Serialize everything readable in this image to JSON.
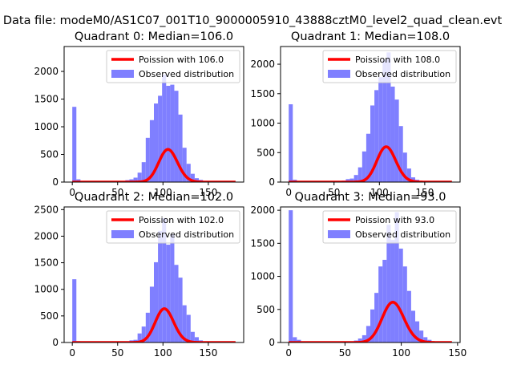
{
  "figure": {
    "suptitle": "Data file: modeM0/AS1C07_001T10_9000005910_43888cztM0_level2_quad_clean.evt"
  },
  "colors": {
    "poisson_line": "#ff0000",
    "histogram_fill": "#7f7fff",
    "axis": "#000000",
    "background": "#ffffff"
  },
  "chart_data": [
    {
      "type": "bar",
      "title": "Quadrant 0: Median=106.0",
      "xlim": [
        -9,
        189
      ],
      "ylim": [
        0,
        2450
      ],
      "xticks": [
        0,
        50,
        100,
        150
      ],
      "xticklabels": [
        "0",
        "50",
        "100",
        "150"
      ],
      "yticks": [
        0,
        500,
        1000,
        1500,
        2000
      ],
      "yticklabels": [
        "0",
        "500",
        "1000",
        "1500",
        "2000"
      ],
      "bin_width": 4.5,
      "bins_x": [
        0,
        4.5,
        9,
        13.5,
        18,
        22.5,
        27,
        31.5,
        36,
        40.5,
        45,
        49.5,
        54,
        58.5,
        63,
        67.5,
        72,
        76.5,
        81,
        85.5,
        90,
        94.5,
        99,
        103.5,
        108,
        112.5,
        117,
        121.5,
        126,
        130.5,
        135,
        139.5,
        144,
        148.5,
        153,
        157.5,
        162,
        166.5,
        171,
        175.5
      ],
      "bins_y": [
        1360,
        50,
        5,
        0,
        0,
        0,
        0,
        0,
        0,
        0,
        0,
        0,
        5,
        35,
        50,
        80,
        170,
        360,
        800,
        1120,
        1420,
        1560,
        1940,
        1740,
        1760,
        1650,
        1220,
        620,
        330,
        150,
        70,
        40,
        15,
        8,
        3,
        0,
        0,
        0,
        0,
        0
      ],
      "poisson_mean": 106.0,
      "poisson_x_max": 180,
      "poisson_scale": 4.5,
      "series": [
        {
          "name": "Poission with 106.0",
          "kind": "line"
        },
        {
          "name": "Observed distribution",
          "kind": "histogram"
        }
      ],
      "legend_loc": "upper right"
    },
    {
      "type": "bar",
      "title": "Quadrant 1: Median=108.0",
      "xlim": [
        -9,
        189
      ],
      "ylim": [
        0,
        2300
      ],
      "xticks": [
        0,
        50,
        100,
        150
      ],
      "xticklabels": [
        "0",
        "50",
        "100",
        "150"
      ],
      "yticks": [
        0,
        500,
        1000,
        1500,
        2000
      ],
      "yticklabels": [
        "0",
        "500",
        "1000",
        "1500",
        "2000"
      ],
      "bin_width": 4.5,
      "bins_x": [
        0,
        4.5,
        9,
        13.5,
        18,
        22.5,
        27,
        31.5,
        36,
        40.5,
        45,
        49.5,
        54,
        58.5,
        63,
        67.5,
        72,
        76.5,
        81,
        85.5,
        90,
        94.5,
        99,
        103.5,
        108,
        112.5,
        117,
        121.5,
        126,
        130.5,
        135,
        139.5,
        144,
        148.5,
        153,
        157.5,
        162,
        166.5,
        171,
        175.5
      ],
      "bins_y": [
        1320,
        40,
        5,
        0,
        0,
        0,
        0,
        0,
        0,
        0,
        0,
        0,
        5,
        25,
        50,
        60,
        120,
        250,
        520,
        820,
        1300,
        1560,
        1780,
        2080,
        2200,
        1620,
        1400,
        950,
        500,
        230,
        80,
        40,
        15,
        8,
        3,
        0,
        0,
        0,
        0,
        0
      ],
      "poisson_mean": 108.0,
      "poisson_x_max": 180,
      "poisson_scale": 4.5,
      "series": [
        {
          "name": "Poission with 108.0",
          "kind": "line"
        },
        {
          "name": "Observed distribution",
          "kind": "histogram"
        }
      ],
      "legend_loc": "upper right"
    },
    {
      "type": "bar",
      "title": "Quadrant 2: Median=102.0",
      "xlim": [
        -9,
        189
      ],
      "ylim": [
        0,
        2550
      ],
      "xticks": [
        0,
        50,
        100,
        150
      ],
      "xticklabels": [
        "0",
        "50",
        "100",
        "150"
      ],
      "yticks": [
        0,
        500,
        1000,
        1500,
        2000,
        2500
      ],
      "yticklabels": [
        "0",
        "500",
        "1000",
        "1500",
        "2000",
        "2500"
      ],
      "bin_width": 4.5,
      "bins_x": [
        0,
        4.5,
        9,
        13.5,
        18,
        22.5,
        27,
        31.5,
        36,
        40.5,
        45,
        49.5,
        54,
        58.5,
        63,
        67.5,
        72,
        76.5,
        81,
        85.5,
        90,
        94.5,
        99,
        103.5,
        108,
        112.5,
        117,
        121.5,
        126,
        130.5,
        135,
        139.5,
        144,
        148.5,
        153,
        157.5,
        162,
        166.5,
        171,
        175.5
      ],
      "bins_y": [
        1190,
        25,
        3,
        0,
        0,
        0,
        0,
        0,
        0,
        0,
        0,
        0,
        3,
        15,
        40,
        50,
        170,
        300,
        560,
        1050,
        1510,
        2100,
        2340,
        1840,
        2040,
        1460,
        1220,
        700,
        520,
        200,
        100,
        40,
        15,
        5,
        0,
        0,
        0,
        0,
        0,
        0
      ],
      "poisson_mean": 102.0,
      "poisson_x_max": 180,
      "poisson_scale": 4.5,
      "series": [
        {
          "name": "Poission with 102.0",
          "kind": "line"
        },
        {
          "name": "Observed distribution",
          "kind": "histogram"
        }
      ],
      "legend_loc": "upper right"
    },
    {
      "type": "bar",
      "title": "Quadrant 3: Median=93.0",
      "xlim": [
        -7.25,
        152.25
      ],
      "ylim": [
        0,
        2050
      ],
      "xticks": [
        0,
        50,
        100,
        150
      ],
      "xticklabels": [
        "0",
        "50",
        "100",
        "150"
      ],
      "yticks": [
        0,
        500,
        1000,
        1500,
        2000
      ],
      "yticklabels": [
        "0",
        "500",
        "1000",
        "1500",
        "2000"
      ],
      "bin_width": 3.625,
      "bins_x": [
        0,
        3.625,
        7.25,
        10.875,
        14.5,
        18.125,
        21.75,
        25.375,
        29,
        32.625,
        36.25,
        39.875,
        43.5,
        47.125,
        50.75,
        54.375,
        58,
        61.625,
        65.25,
        68.875,
        72.5,
        76.125,
        79.75,
        83.375,
        87,
        90.625,
        94.25,
        97.875,
        101.5,
        105.125,
        108.75,
        112.375,
        116,
        119.625,
        123.25,
        126.875,
        130.5,
        134.125,
        137.75,
        141.375
      ],
      "bins_y": [
        2000,
        80,
        40,
        5,
        0,
        0,
        0,
        0,
        0,
        0,
        0,
        0,
        0,
        0,
        5,
        10,
        30,
        60,
        110,
        250,
        500,
        750,
        1150,
        1250,
        1780,
        1550,
        1970,
        1420,
        1150,
        780,
        480,
        320,
        180,
        80,
        40,
        15,
        5,
        0,
        0,
        0
      ],
      "poisson_mean": 93.0,
      "poisson_x_max": 145,
      "poisson_scale": 3.625,
      "series": [
        {
          "name": "Poission with 93.0",
          "kind": "line"
        },
        {
          "name": "Observed distribution",
          "kind": "histogram"
        }
      ],
      "legend_loc": "upper right"
    }
  ]
}
